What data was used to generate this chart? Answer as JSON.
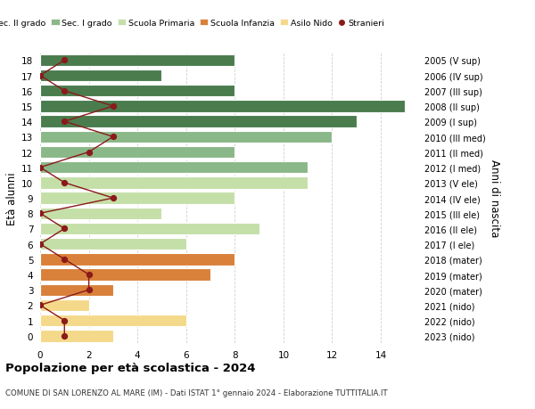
{
  "ages": [
    18,
    17,
    16,
    15,
    14,
    13,
    12,
    11,
    10,
    9,
    8,
    7,
    6,
    5,
    4,
    3,
    2,
    1,
    0
  ],
  "years": [
    "2005 (V sup)",
    "2006 (IV sup)",
    "2007 (III sup)",
    "2008 (II sup)",
    "2009 (I sup)",
    "2010 (III med)",
    "2011 (II med)",
    "2012 (I med)",
    "2013 (V ele)",
    "2014 (IV ele)",
    "2015 (III ele)",
    "2016 (II ele)",
    "2017 (I ele)",
    "2018 (mater)",
    "2019 (mater)",
    "2020 (mater)",
    "2021 (nido)",
    "2022 (nido)",
    "2023 (nido)"
  ],
  "bar_values": [
    8,
    5,
    8,
    15,
    13,
    12,
    8,
    11,
    11,
    8,
    5,
    9,
    6,
    8,
    7,
    3,
    2,
    6,
    3
  ],
  "bar_colors": [
    "#4a7c4e",
    "#4a7c4e",
    "#4a7c4e",
    "#4a7c4e",
    "#4a7c4e",
    "#8ab888",
    "#8ab888",
    "#8ab888",
    "#c5dfa8",
    "#c5dfa8",
    "#c5dfa8",
    "#c5dfa8",
    "#c5dfa8",
    "#d9813a",
    "#d9813a",
    "#d9813a",
    "#f5d98b",
    "#f5d98b",
    "#f5d98b"
  ],
  "stranieri_values": [
    1,
    0,
    1,
    3,
    1,
    3,
    2,
    0,
    1,
    3,
    0,
    1,
    0,
    1,
    2,
    2,
    0,
    1,
    1
  ],
  "stranieri_color": "#8b1a1a",
  "title": "Popolazione per età scolastica - 2024",
  "subtitle": "COMUNE DI SAN LORENZO AL MARE (IM) - Dati ISTAT 1° gennaio 2024 - Elaborazione TUTTITALIA.IT",
  "ylabel_left": "Età alunni",
  "ylabel_right": "Anni di nascita",
  "xticks": [
    0,
    2,
    4,
    6,
    8,
    10,
    12,
    14
  ],
  "xlim_max": 15.5,
  "legend_labels": [
    "Sec. II grado",
    "Sec. I grado",
    "Scuola Primaria",
    "Scuola Infanzia",
    "Asilo Nido",
    "Stranieri"
  ],
  "legend_colors": [
    "#4a7c4e",
    "#8ab888",
    "#c5dfa8",
    "#d9813a",
    "#f5d98b",
    "#8b1a1a"
  ],
  "bg_color": "#ffffff",
  "grid_color": "#d0d0d0"
}
